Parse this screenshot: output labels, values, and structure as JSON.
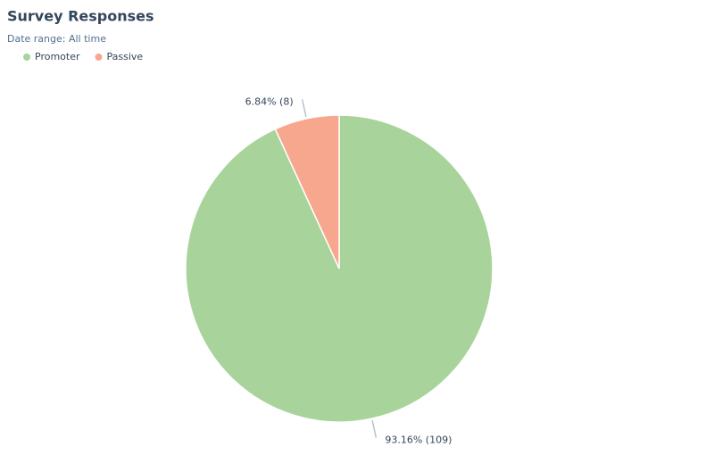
{
  "chart_data": {
    "type": "pie",
    "title": "Survey Responses",
    "subtitle": "Date range: All time",
    "categories": [
      "Promoter",
      "Passive"
    ],
    "values": [
      109,
      8
    ],
    "value_labels": [
      "93.16% (109)",
      "6.84% (8)"
    ],
    "colors": [
      "#a8d39a",
      "#f8a78f"
    ],
    "legend": "top-left"
  }
}
